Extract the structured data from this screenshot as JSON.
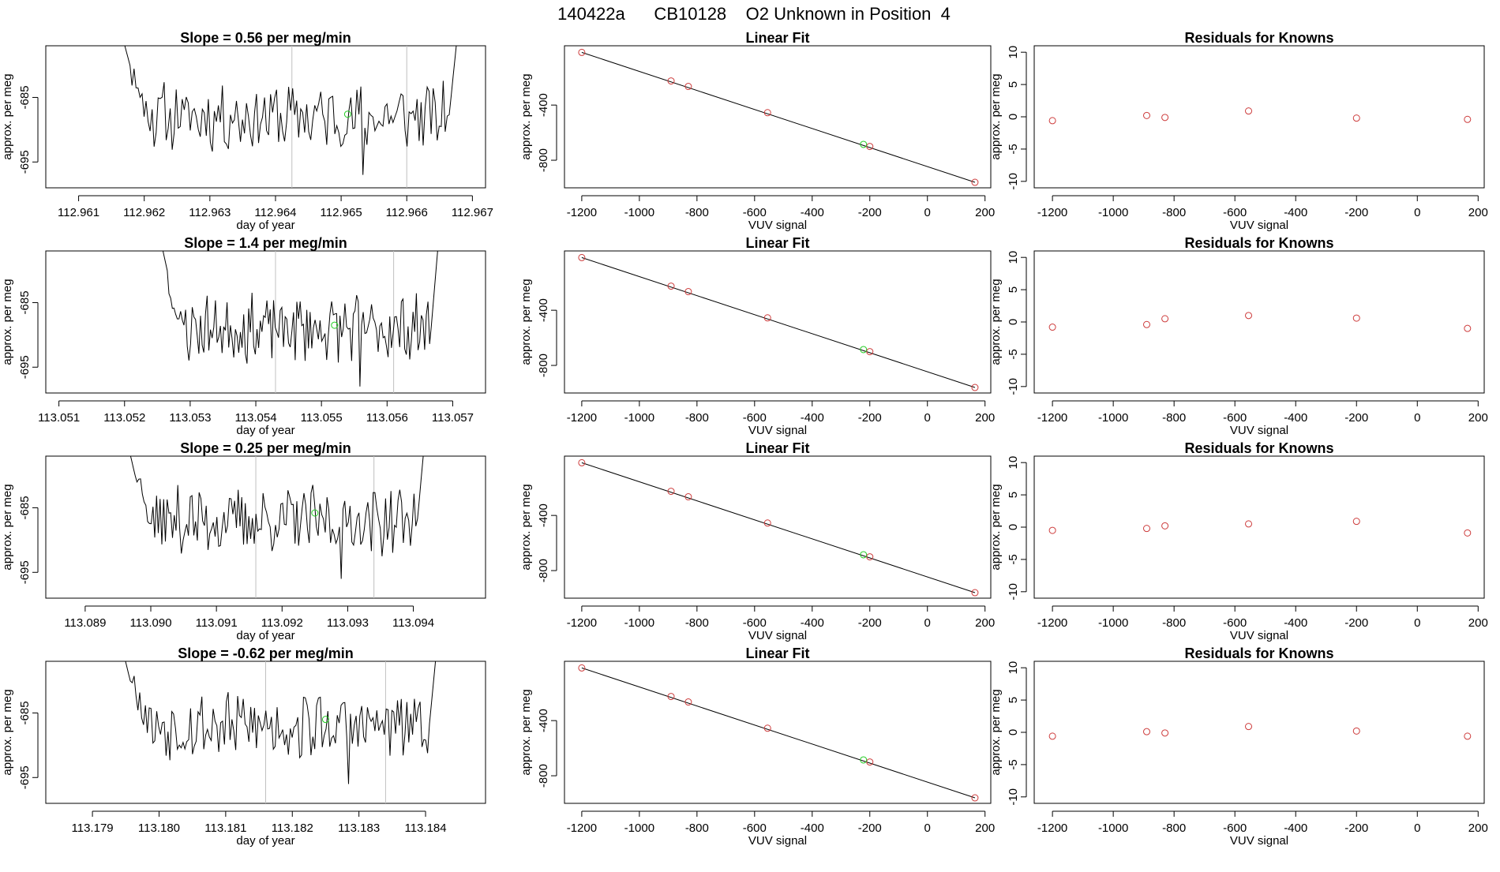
{
  "page": {
    "title": "140422a      CB10128    O2 Unknown in Position  4"
  },
  "colors": {
    "line": "#000000",
    "known_point": "#cd3b3b",
    "unknown_point": "#22cc22",
    "marker_line": "#c0c0c0"
  },
  "chart_data": [
    {
      "type": "line",
      "row": 0,
      "panel": "timeseries",
      "title": "Slope =  0.56  per meg/min",
      "xlabel": "day of year",
      "ylabel": "approx. per meg",
      "xlim": [
        112.9605,
        112.9672
      ],
      "ylim": [
        -699,
        -677
      ],
      "xticks": [
        "112.961",
        "112.962",
        "112.963",
        "112.964",
        "112.965",
        "112.966",
        "112.967"
      ],
      "xtick_values": [
        112.961,
        112.962,
        112.963,
        112.964,
        112.965,
        112.966,
        112.967
      ],
      "yticks": [
        "-685",
        "-695"
      ],
      "ytick_values": [
        -685,
        -695
      ],
      "markers_x": [
        112.96425,
        112.966
      ],
      "unknown_point": {
        "x": 112.9651,
        "y": -687.6
      },
      "x_start": 112.9616,
      "x_end": 112.9668,
      "seed": 11,
      "baseline": -688
    },
    {
      "type": "scatter",
      "row": 0,
      "panel": "fit",
      "title": "Linear Fit",
      "xlabel": "VUV signal",
      "ylabel": "approx. per meg",
      "xlim": [
        -1260,
        220
      ],
      "ylim": [
        -1000,
        30
      ],
      "xticks": [
        "-1200",
        "-1000",
        "-800",
        "-600",
        "-400",
        "-200",
        "0",
        "200"
      ],
      "xtick_values": [
        -1200,
        -1000,
        -800,
        -600,
        -400,
        -200,
        0,
        200
      ],
      "yticks": [
        "-400",
        "-800"
      ],
      "ytick_values": [
        -400,
        -800
      ],
      "line": {
        "x": [
          -1200,
          165
        ],
        "y": [
          -18,
          -960
        ]
      },
      "knowns": {
        "x": [
          -1200,
          -890,
          -830,
          -555,
          -200,
          165
        ],
        "y": [
          -18,
          -225,
          -265,
          -455,
          -700,
          -960
        ]
      },
      "unknown": {
        "x": -222,
        "y": -685
      }
    },
    {
      "type": "scatter",
      "row": 0,
      "panel": "residuals",
      "title": "Residuals for Knowns",
      "xlabel": "VUV signal",
      "ylabel": "approx. per meg",
      "xlim": [
        -1260,
        220
      ],
      "ylim": [
        -11,
        11
      ],
      "xticks": [
        "-1200",
        "-1000",
        "-800",
        "-600",
        "-400",
        "-200",
        "0",
        "200"
      ],
      "xtick_values": [
        -1200,
        -1000,
        -800,
        -600,
        -400,
        -200,
        0,
        200
      ],
      "yticks": [
        "10",
        "5",
        "0",
        "-5",
        "-10"
      ],
      "ytick_values": [
        10,
        5,
        0,
        -5,
        -10
      ],
      "knowns": {
        "x": [
          -1200,
          -890,
          -830,
          -555,
          -200,
          165
        ],
        "y": [
          -0.6,
          0.2,
          -0.1,
          0.9,
          -0.2,
          -0.4
        ]
      }
    },
    {
      "type": "line",
      "row": 1,
      "panel": "timeseries",
      "title": "Slope =  1.4  per meg/min",
      "xlabel": "day of year",
      "ylabel": "approx. per meg",
      "xlim": [
        113.0508,
        113.0575
      ],
      "ylim": [
        -699,
        -677
      ],
      "xticks": [
        "113.051",
        "113.052",
        "113.053",
        "113.054",
        "113.055",
        "113.056",
        "113.057"
      ],
      "xtick_values": [
        113.051,
        113.052,
        113.053,
        113.054,
        113.055,
        113.056,
        113.057
      ],
      "yticks": [
        "-685",
        "-695"
      ],
      "ytick_values": [
        -685,
        -695
      ],
      "markers_x": [
        113.0543,
        113.0561
      ],
      "unknown_point": {
        "x": 113.0552,
        "y": -688.5
      },
      "x_start": 113.0525,
      "x_end": 113.0568,
      "seed": 23,
      "baseline": -689
    },
    {
      "type": "scatter",
      "row": 1,
      "panel": "fit",
      "title": "Linear Fit",
      "xlabel": "VUV signal",
      "ylabel": "approx. per meg",
      "xlim": [
        -1260,
        220
      ],
      "ylim": [
        -1000,
        30
      ],
      "xticks": [
        "-1200",
        "-1000",
        "-800",
        "-600",
        "-400",
        "-200",
        "0",
        "200"
      ],
      "xtick_values": [
        -1200,
        -1000,
        -800,
        -600,
        -400,
        -200,
        0,
        200
      ],
      "yticks": [
        "-400",
        "-800"
      ],
      "ytick_values": [
        -400,
        -800
      ],
      "line": {
        "x": [
          -1200,
          165
        ],
        "y": [
          -18,
          -960
        ]
      },
      "knowns": {
        "x": [
          -1200,
          -890,
          -830,
          -555,
          -200,
          165
        ],
        "y": [
          -18,
          -225,
          -265,
          -455,
          -700,
          -960
        ]
      },
      "unknown": {
        "x": -222,
        "y": -685
      }
    },
    {
      "type": "scatter",
      "row": 1,
      "panel": "residuals",
      "title": "Residuals for Knowns",
      "xlabel": "VUV signal",
      "ylabel": "approx. per meg",
      "xlim": [
        -1260,
        220
      ],
      "ylim": [
        -11,
        11
      ],
      "xticks": [
        "-1200",
        "-1000",
        "-800",
        "-600",
        "-400",
        "-200",
        "0",
        "200"
      ],
      "xtick_values": [
        -1200,
        -1000,
        -800,
        -600,
        -400,
        -200,
        0,
        200
      ],
      "yticks": [
        "10",
        "5",
        "0",
        "-5",
        "-10"
      ],
      "ytick_values": [
        10,
        5,
        0,
        -5,
        -10
      ],
      "knowns": {
        "x": [
          -1200,
          -890,
          -830,
          -555,
          -200,
          165
        ],
        "y": [
          -0.8,
          -0.4,
          0.5,
          1.0,
          0.6,
          -1.0
        ]
      }
    },
    {
      "type": "line",
      "row": 2,
      "panel": "timeseries",
      "title": "Slope =  0.25  per meg/min",
      "xlabel": "day of year",
      "ylabel": "approx. per meg",
      "xlim": [
        113.0884,
        113.0951
      ],
      "ylim": [
        -699,
        -677
      ],
      "xticks": [
        "113.089",
        "113.090",
        "113.091",
        "113.092",
        "113.093",
        "113.094"
      ],
      "xtick_values": [
        113.089,
        113.09,
        113.091,
        113.092,
        113.093,
        113.094
      ],
      "yticks": [
        "-685",
        "-695"
      ],
      "ytick_values": [
        -685,
        -695
      ],
      "markers_x": [
        113.0916,
        113.0934
      ],
      "unknown_point": {
        "x": 113.0925,
        "y": -685.8
      },
      "x_start": 113.0896,
      "x_end": 113.0942,
      "seed": 37,
      "baseline": -687
    },
    {
      "type": "scatter",
      "row": 2,
      "panel": "fit",
      "title": "Linear Fit",
      "xlabel": "VUV signal",
      "ylabel": "approx. per meg",
      "xlim": [
        -1260,
        220
      ],
      "ylim": [
        -1000,
        30
      ],
      "xticks": [
        "-1200",
        "-1000",
        "-800",
        "-600",
        "-400",
        "-200",
        "0",
        "200"
      ],
      "xtick_values": [
        -1200,
        -1000,
        -800,
        -600,
        -400,
        -200,
        0,
        200
      ],
      "yticks": [
        "-400",
        "-800"
      ],
      "ytick_values": [
        -400,
        -800
      ],
      "line": {
        "x": [
          -1200,
          165
        ],
        "y": [
          -18,
          -960
        ]
      },
      "knowns": {
        "x": [
          -1200,
          -890,
          -830,
          -555,
          -200,
          165
        ],
        "y": [
          -18,
          -225,
          -265,
          -455,
          -700,
          -960
        ]
      },
      "unknown": {
        "x": -222,
        "y": -685
      }
    },
    {
      "type": "scatter",
      "row": 2,
      "panel": "residuals",
      "title": "Residuals for Knowns",
      "xlabel": "VUV signal",
      "ylabel": "approx. per meg",
      "xlim": [
        -1260,
        220
      ],
      "ylim": [
        -11,
        11
      ],
      "xticks": [
        "-1200",
        "-1000",
        "-800",
        "-600",
        "-400",
        "-200",
        "0",
        "200"
      ],
      "xtick_values": [
        -1200,
        -1000,
        -800,
        -600,
        -400,
        -200,
        0,
        200
      ],
      "yticks": [
        "10",
        "5",
        "0",
        "-5",
        "-10"
      ],
      "ytick_values": [
        10,
        5,
        0,
        -5,
        -10
      ],
      "knowns": {
        "x": [
          -1200,
          -890,
          -830,
          -555,
          -200,
          165
        ],
        "y": [
          -0.5,
          -0.2,
          0.2,
          0.5,
          0.9,
          -0.9
        ]
      }
    },
    {
      "type": "line",
      "row": 3,
      "panel": "timeseries",
      "title": "Slope =  -0.62  per meg/min",
      "xlabel": "day of year",
      "ylabel": "approx. per meg",
      "xlim": [
        113.1783,
        113.1849
      ],
      "ylim": [
        -699,
        -677
      ],
      "xticks": [
        "113.179",
        "113.180",
        "113.181",
        "113.182",
        "113.183",
        "113.184"
      ],
      "xtick_values": [
        113.179,
        113.18,
        113.181,
        113.182,
        113.183,
        113.184
      ],
      "yticks": [
        "-685",
        "-695"
      ],
      "ytick_values": [
        -685,
        -695
      ],
      "markers_x": [
        113.1816,
        113.1834
      ],
      "unknown_point": {
        "x": 113.1825,
        "y": -686.0
      },
      "x_start": 113.1794,
      "x_end": 113.1842,
      "seed": 53,
      "baseline": -687
    },
    {
      "type": "scatter",
      "row": 3,
      "panel": "fit",
      "title": "Linear Fit",
      "xlabel": "VUV signal",
      "ylabel": "approx. per meg",
      "xlim": [
        -1260,
        220
      ],
      "ylim": [
        -1000,
        30
      ],
      "xticks": [
        "-1200",
        "-1000",
        "-800",
        "-600",
        "-400",
        "-200",
        "0",
        "200"
      ],
      "xtick_values": [
        -1200,
        -1000,
        -800,
        -600,
        -400,
        -200,
        0,
        200
      ],
      "yticks": [
        "-400",
        "-800"
      ],
      "ytick_values": [
        -400,
        -800
      ],
      "line": {
        "x": [
          -1200,
          165
        ],
        "y": [
          -18,
          -960
        ]
      },
      "knowns": {
        "x": [
          -1200,
          -890,
          -830,
          -555,
          -200,
          165
        ],
        "y": [
          -18,
          -225,
          -265,
          -455,
          -700,
          -960
        ]
      },
      "unknown": {
        "x": -222,
        "y": -685
      }
    },
    {
      "type": "scatter",
      "row": 3,
      "panel": "residuals",
      "title": "Residuals for Knowns",
      "xlabel": "VUV signal",
      "ylabel": "approx. per meg",
      "xlim": [
        -1260,
        220
      ],
      "ylim": [
        -11,
        11
      ],
      "xticks": [
        "-1200",
        "-1000",
        "-800",
        "-600",
        "-400",
        "-200",
        "0",
        "200"
      ],
      "xtick_values": [
        -1200,
        -1000,
        -800,
        -600,
        -400,
        -200,
        0,
        200
      ],
      "yticks": [
        "10",
        "5",
        "0",
        "-5",
        "-10"
      ],
      "ytick_values": [
        10,
        5,
        0,
        -5,
        -10
      ],
      "knowns": {
        "x": [
          -1200,
          -890,
          -830,
          -555,
          -200,
          165
        ],
        "y": [
          -0.6,
          0.1,
          -0.1,
          0.9,
          0.2,
          -0.6
        ]
      }
    }
  ]
}
